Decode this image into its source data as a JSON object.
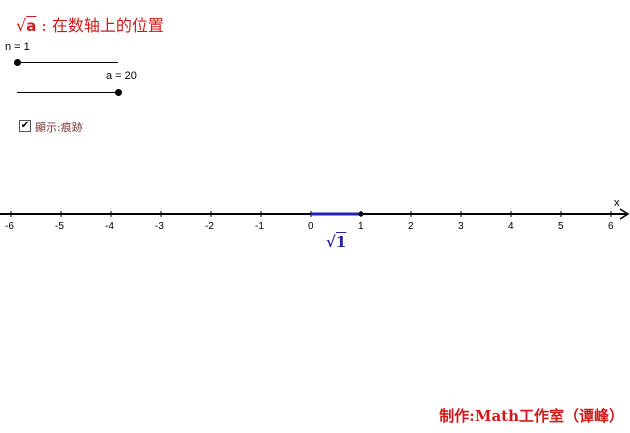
{
  "title": {
    "radical": "√",
    "radicand": "a",
    "text": " : 在数轴上的位置"
  },
  "sliders": [
    {
      "label": "n = 1",
      "value": 1
    },
    {
      "label": "a = 20",
      "value": 20
    }
  ],
  "checkbox": {
    "label": "顯示:痕跡",
    "checked": true,
    "mark": "✔"
  },
  "axis": {
    "label": "x",
    "min": -6,
    "max": 6,
    "ticks": [
      "-6",
      "-5",
      "-4",
      "-3",
      "-2",
      "-1",
      "0",
      "1",
      "2",
      "3",
      "4",
      "5",
      "6"
    ]
  },
  "segment": {
    "from": 0,
    "to": 1,
    "color": "#2020c0",
    "label_radical": "√",
    "label_value": "1"
  },
  "credit": "制作:Math工作室（谭峰）"
}
